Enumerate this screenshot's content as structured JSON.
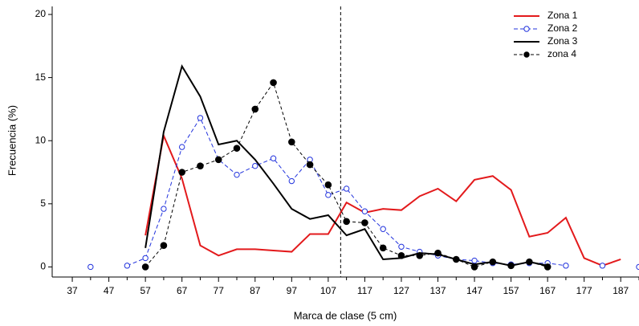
{
  "chart_data": {
    "type": "line",
    "xlabel": "Marca de clase (5 cm)",
    "ylabel": "Frecuencia (%)",
    "x": [
      37,
      42,
      47,
      52,
      57,
      62,
      67,
      72,
      77,
      82,
      87,
      92,
      97,
      102,
      107,
      112,
      117,
      122,
      127,
      132,
      137,
      142,
      147,
      152,
      157,
      162,
      167,
      172,
      177,
      182,
      187,
      192
    ],
    "series": [
      {
        "name": "Zona 1",
        "color": "#e31a1c",
        "dash": "none",
        "marker": "none",
        "values": [
          null,
          null,
          null,
          null,
          2.5,
          10.4,
          7.0,
          1.7,
          0.9,
          1.4,
          1.4,
          1.3,
          1.2,
          2.6,
          2.6,
          5.1,
          4.3,
          4.6,
          4.5,
          5.6,
          6.2,
          5.2,
          6.9,
          7.2,
          6.1,
          2.4,
          2.7,
          3.9,
          0.7,
          0.1,
          0.6,
          null
        ]
      },
      {
        "name": "Zona 2",
        "color": "#2233dd",
        "dash": "5,3",
        "marker": "open",
        "values": [
          null,
          0,
          null,
          0.1,
          0.7,
          4.6,
          9.5,
          11.8,
          8.5,
          7.3,
          8.0,
          8.6,
          6.8,
          8.5,
          5.7,
          6.2,
          4.4,
          3.0,
          1.6,
          1.2,
          0.9,
          0.6,
          0.5,
          0.3,
          0.2,
          0.3,
          0.3,
          0.1,
          null,
          0.1,
          null,
          0
        ]
      },
      {
        "name": "Zona 3",
        "color": "#000000",
        "dash": "none",
        "marker": "none",
        "values": [
          null,
          null,
          null,
          null,
          1.5,
          10.7,
          15.9,
          13.5,
          9.7,
          10.0,
          8.5,
          6.6,
          4.6,
          3.8,
          4.1,
          2.5,
          3.0,
          0.6,
          0.7,
          1.1,
          1.0,
          0.6,
          0.2,
          0.4,
          0.1,
          0.4,
          0.1,
          null,
          null,
          null,
          null,
          null
        ]
      },
      {
        "name": "zona 4",
        "color": "#000000",
        "dash": "4,3",
        "marker": "filled",
        "values": [
          null,
          null,
          null,
          null,
          0,
          1.7,
          7.5,
          8.0,
          8.5,
          9.4,
          12.5,
          14.6,
          9.9,
          8.1,
          6.5,
          3.6,
          3.5,
          1.5,
          0.9,
          0.9,
          1.1,
          0.6,
          0,
          0.4,
          0.1,
          0.4,
          0,
          null,
          null,
          null,
          null,
          null
        ]
      }
    ],
    "xlim": [
      31.5,
      192
    ],
    "ylim": [
      -0.8,
      20
    ],
    "xticks": [
      37,
      47,
      57,
      67,
      77,
      87,
      97,
      107,
      117,
      127,
      137,
      147,
      157,
      167,
      177,
      187
    ],
    "xticks_minor": [
      42,
      52,
      62,
      72,
      82,
      92,
      102,
      112,
      122,
      132,
      142,
      152,
      162,
      172,
      182,
      192
    ],
    "yticks": [
      0,
      5,
      10,
      15,
      20
    ],
    "reference_line_x": 110.4,
    "legend": "upper right"
  }
}
